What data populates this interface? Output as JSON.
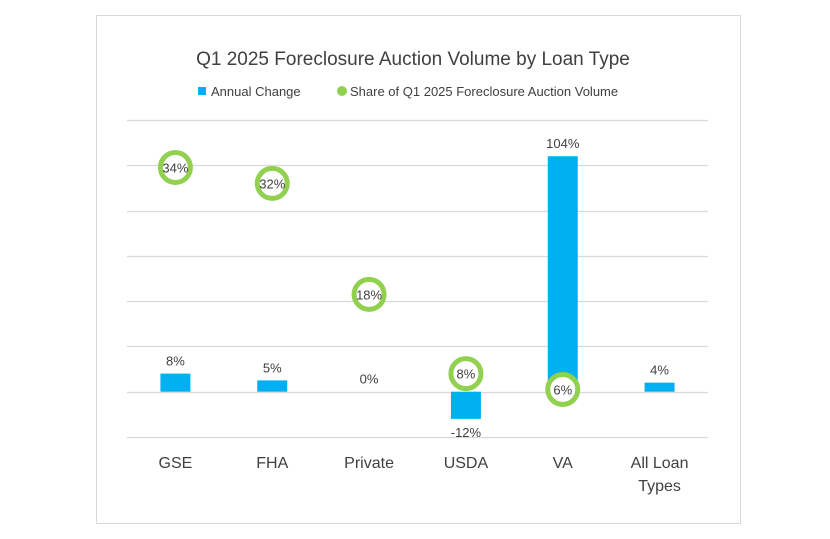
{
  "chart_data": {
    "type": "bar",
    "title": "Q1 2025 Foreclosure Auction Volume by Loan Type",
    "categories": [
      "GSE",
      "FHA",
      "Private",
      "USDA",
      "VA",
      "All Loan Types"
    ],
    "series": [
      {
        "name": "Annual Change",
        "kind": "bar",
        "axis": "primary",
        "color": "#00b0f0",
        "values": [
          8,
          5,
          0,
          -12,
          104,
          4
        ],
        "labels": [
          "8%",
          "5%",
          "0%",
          "-12%",
          "104%",
          "4%"
        ]
      },
      {
        "name": "Share of Q1 2025 Foreclosure Auction Volume",
        "kind": "marker",
        "axis": "secondary",
        "color": "#92d050",
        "values": [
          34,
          32,
          18,
          8,
          6,
          null
        ],
        "labels": [
          "34%",
          "32%",
          "18%",
          "8%",
          "6%",
          null
        ]
      }
    ],
    "primary_ylim": [
      -20,
      120
    ],
    "primary_grid_step": 20,
    "secondary_ylim": [
      0,
      40
    ],
    "grid": true,
    "legend_position": "top",
    "xlabel": "",
    "ylabel": ""
  }
}
